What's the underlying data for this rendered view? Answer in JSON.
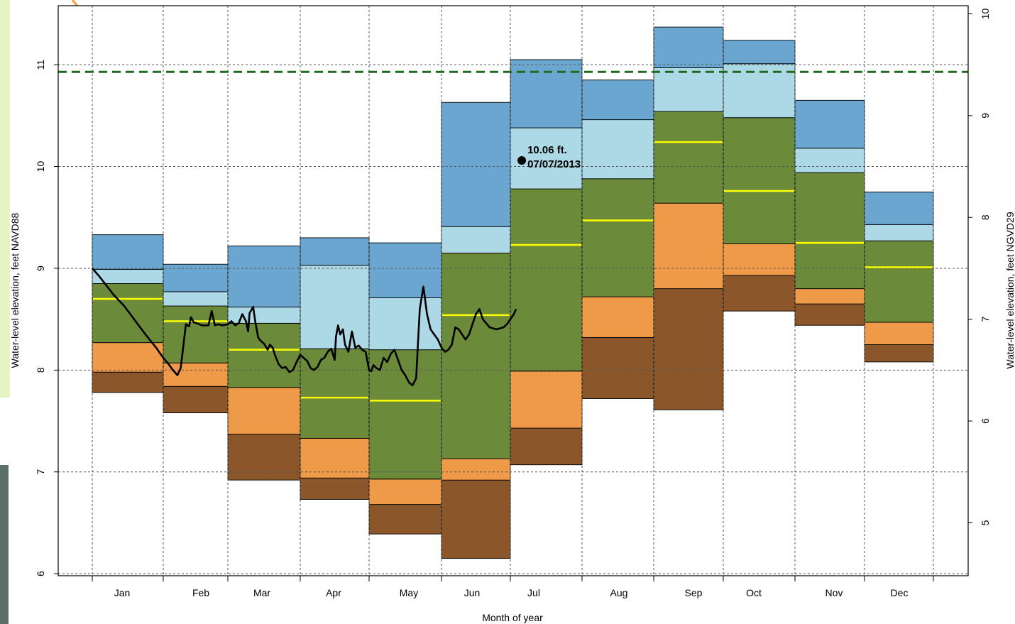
{
  "chart_data": {
    "type": "bar",
    "subtype": "floating-percentile-boxes-by-month",
    "xlabel": "Month of year",
    "ylabel_left": "Water-level elevation, feet NAVD88",
    "ylabel_right": "Water-level elevation, feet NGVD29",
    "ylim_left": [
      5.98,
      11.58
    ],
    "yticks_left": [
      6,
      7,
      8,
      9,
      10,
      11
    ],
    "ylim_right": [
      4.48,
      10.08
    ],
    "yticks_right": [
      5,
      6,
      7,
      8,
      9,
      10
    ],
    "grid": true,
    "categories": [
      "Jan",
      "Feb",
      "Mar",
      "Apr",
      "May",
      "Jun",
      "Jul",
      "Aug",
      "Sep",
      "Oct",
      "Nov",
      "Dec"
    ],
    "colors": {
      "band_low": "#8b572a",
      "band_lowmid": "#ee9a49",
      "band_mid": "#6b8a3a",
      "band_highmid": "#add8e6",
      "band_high": "#6aa6d0",
      "median": "#ffff00",
      "current_line": "#000000",
      "reference_line": "#1e6b1e",
      "arrow": "#f0a030"
    },
    "boxes": [
      {
        "month": "Jan",
        "b": [
          7.78,
          7.98,
          8.27,
          8.85,
          8.99,
          9.33
        ],
        "median": 8.7
      },
      {
        "month": "Feb",
        "b": [
          7.58,
          7.84,
          8.07,
          8.63,
          8.77,
          9.04
        ],
        "median": 8.48
      },
      {
        "month": "Mar",
        "b": [
          6.92,
          7.37,
          7.83,
          8.46,
          8.62,
          9.22
        ],
        "median": 8.2
      },
      {
        "month": "Apr",
        "b": [
          6.73,
          6.94,
          7.33,
          8.21,
          9.03,
          9.3
        ],
        "median": 7.73
      },
      {
        "month": "May",
        "b": [
          6.39,
          6.68,
          6.93,
          8.2,
          8.71,
          9.25
        ],
        "median": 7.7
      },
      {
        "month": "Jun",
        "b": [
          6.15,
          6.92,
          7.13,
          9.15,
          9.41,
          10.63
        ],
        "median": 8.54
      },
      {
        "month": "Jul",
        "b": [
          7.07,
          7.43,
          7.99,
          9.78,
          10.38,
          11.05
        ],
        "median": 9.23
      },
      {
        "month": "Aug",
        "b": [
          7.72,
          8.32,
          8.72,
          9.88,
          10.46,
          10.85
        ],
        "median": 9.47
      },
      {
        "month": "Sep",
        "b": [
          7.61,
          8.8,
          9.64,
          10.54,
          10.97,
          11.37
        ],
        "median": 10.24
      },
      {
        "month": "Oct",
        "b": [
          8.58,
          8.93,
          9.24,
          10.48,
          11.01,
          11.24
        ],
        "median": 9.76
      },
      {
        "month": "Nov",
        "b": [
          8.44,
          8.65,
          8.8,
          9.94,
          10.18,
          10.65
        ],
        "median": 9.25
      },
      {
        "month": "Dec",
        "b": [
          8.08,
          8.25,
          8.47,
          9.27,
          9.43,
          9.75
        ],
        "median": 9.01
      }
    ],
    "reference_level": 10.93,
    "current_series": {
      "x_month_fraction": [
        0,
        0.1,
        0.2,
        0.3,
        0.45,
        0.6,
        0.75,
        0.9,
        1.0,
        1.08,
        1.15,
        1.22,
        1.27,
        1.35,
        1.4,
        1.43,
        1.47,
        1.52,
        1.6,
        1.7,
        1.75,
        1.8,
        1.85,
        1.92,
        2.0,
        2.05,
        2.1,
        2.15,
        2.2,
        2.25,
        2.28,
        2.3,
        2.35,
        2.38,
        2.42,
        2.45,
        2.5,
        2.55,
        2.58,
        2.62,
        2.65,
        2.7,
        2.75,
        2.8,
        2.85,
        2.9,
        2.95,
        3.0,
        3.05,
        3.1,
        3.15,
        3.2,
        3.25,
        3.3,
        3.35,
        3.4,
        3.45,
        3.5,
        3.52,
        3.55,
        3.58,
        3.62,
        3.65,
        3.7,
        3.75,
        3.8,
        3.85,
        3.9,
        3.95,
        4.0,
        4.03,
        4.06,
        4.1,
        4.15,
        4.2,
        4.25,
        4.3,
        4.35,
        4.4,
        4.45,
        4.5,
        4.55,
        4.6,
        4.65,
        4.7,
        4.75,
        4.8,
        4.85,
        4.9,
        4.95,
        5.0,
        5.05,
        5.1,
        5.15,
        5.2,
        5.25,
        5.3,
        5.35,
        5.4,
        5.45,
        5.5,
        5.55,
        5.6,
        5.7,
        5.8,
        5.9,
        5.95,
        6.0,
        6.05,
        6.08
      ],
      "y": [
        9.0,
        8.92,
        8.83,
        8.74,
        8.63,
        8.49,
        8.35,
        8.22,
        8.12,
        8.06,
        8.0,
        7.95,
        8.02,
        8.45,
        8.43,
        8.52,
        8.47,
        8.46,
        8.44,
        8.44,
        8.58,
        8.44,
        8.45,
        8.44,
        8.45,
        8.48,
        8.44,
        8.46,
        8.55,
        8.48,
        8.38,
        8.56,
        8.62,
        8.47,
        8.32,
        8.29,
        8.26,
        8.2,
        8.25,
        8.22,
        8.15,
        8.06,
        8.02,
        8.03,
        7.98,
        8.0,
        8.08,
        8.15,
        8.12,
        8.09,
        8.02,
        8.0,
        8.03,
        8.1,
        8.12,
        8.18,
        8.21,
        8.1,
        8.33,
        8.44,
        8.35,
        8.4,
        8.25,
        8.18,
        8.38,
        8.22,
        8.24,
        8.2,
        8.18,
        8.0,
        7.99,
        8.05,
        8.02,
        8.0,
        8.12,
        8.08,
        8.16,
        8.2,
        8.1,
        8.0,
        7.95,
        7.88,
        7.85,
        7.92,
        8.6,
        8.82,
        8.55,
        8.4,
        8.35,
        8.3,
        8.22,
        8.18,
        8.2,
        8.25,
        8.42,
        8.4,
        8.35,
        8.3,
        8.35,
        8.45,
        8.55,
        8.6,
        8.5,
        8.42,
        8.4,
        8.42,
        8.45,
        8.5,
        8.55,
        8.6
      ]
    },
    "annotation": {
      "value_text": "10.06 ft.",
      "date_text": "07/07/2013",
      "value": 10.06
    }
  }
}
